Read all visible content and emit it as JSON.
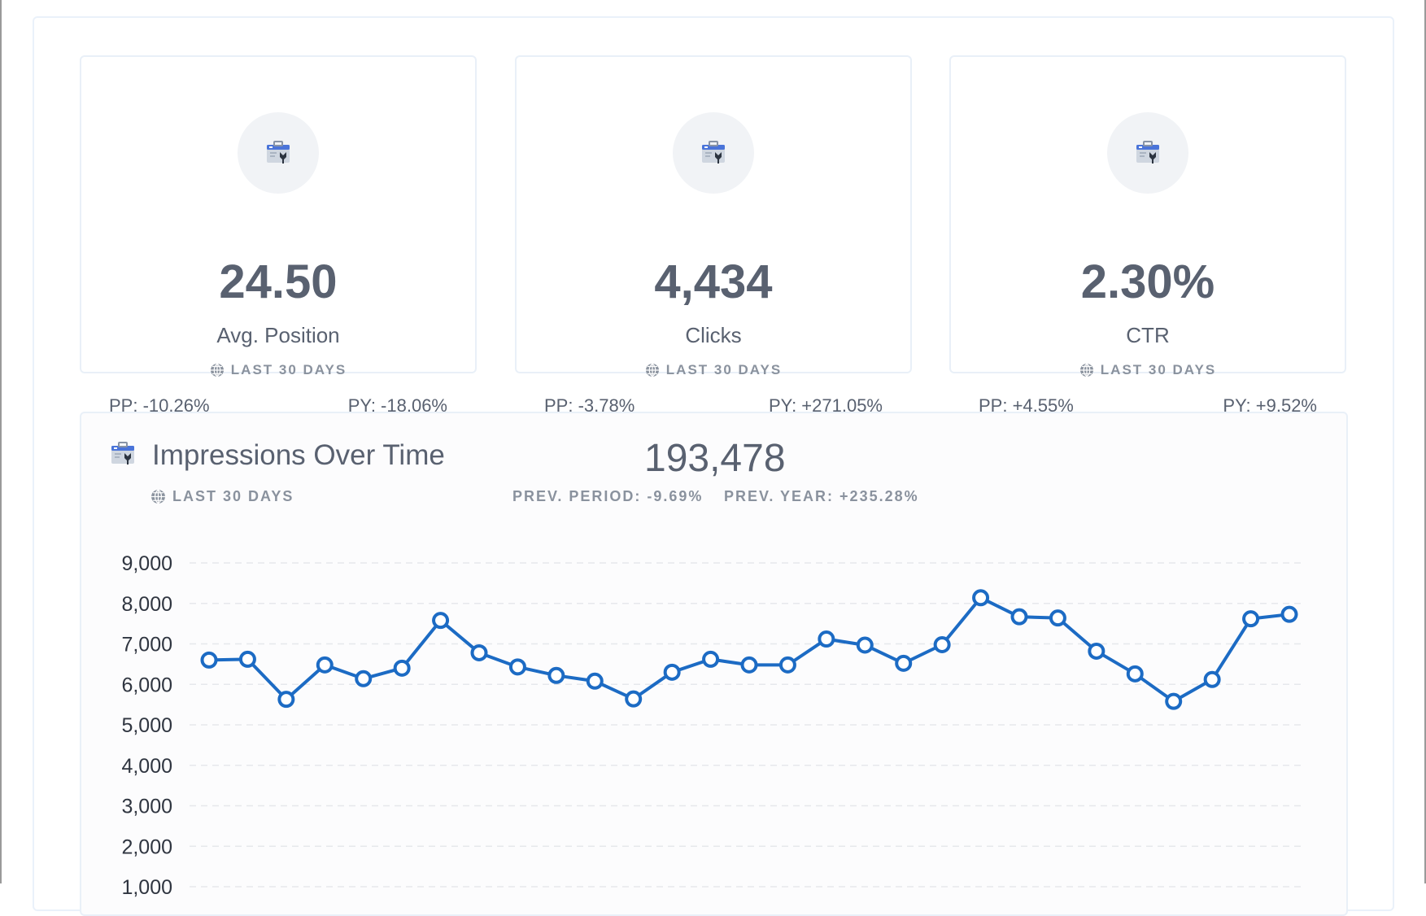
{
  "metric_cards": [
    {
      "icon": "search-console-icon",
      "value": "24.50",
      "label": "Avg. Position",
      "period": "LAST 30 DAYS",
      "pp": "PP: -10.26%",
      "py": "PY: -18.06%"
    },
    {
      "icon": "search-console-icon",
      "value": "4,434",
      "label": "Clicks",
      "period": "LAST 30 DAYS",
      "pp": "PP: -3.78%",
      "py": "PY: +271.05%"
    },
    {
      "icon": "search-console-icon",
      "value": "2.30%",
      "label": "CTR",
      "period": "LAST 30 DAYS",
      "pp": "PP: +4.55%",
      "py": "PY: +9.52%"
    }
  ],
  "impressions": {
    "title": "Impressions Over Time",
    "period": "LAST 30 DAYS",
    "total": "193,478",
    "prev_period": "PREV. PERIOD: -9.69%",
    "prev_year": "PREV. YEAR: +235.28%"
  },
  "colors": {
    "line": "#1c6bc4",
    "text": "#596170",
    "muted": "#8a929e"
  },
  "chart_data": {
    "type": "line",
    "title": "Impressions Over Time",
    "xlabel": "",
    "ylabel": "",
    "ylim": [
      1000,
      9000
    ],
    "yticks": [
      "1,000",
      "2,000",
      "3,000",
      "4,000",
      "5,000",
      "6,000",
      "7,000",
      "8,000",
      "9,000"
    ],
    "grid": true,
    "series": [
      {
        "name": "Impressions",
        "values": [
          6600,
          6620,
          5630,
          6480,
          6140,
          6400,
          7580,
          6780,
          6430,
          6220,
          6080,
          5640,
          6300,
          6620,
          6480,
          6480,
          7120,
          6970,
          6520,
          6980,
          8140,
          7670,
          7640,
          6820,
          6260,
          5580,
          6120,
          7620,
          7730
        ]
      }
    ]
  }
}
